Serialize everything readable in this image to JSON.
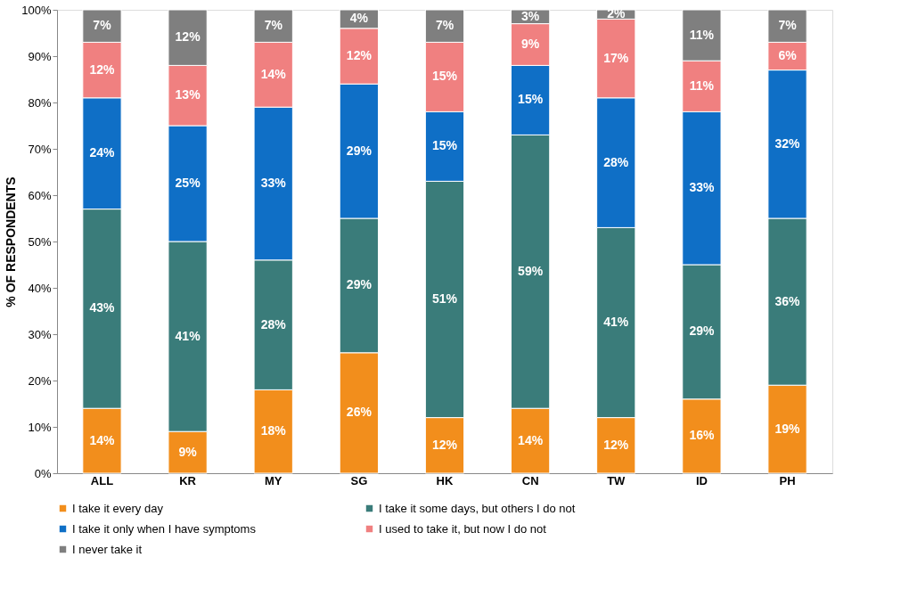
{
  "chart_data": {
    "type": "bar",
    "stacked": true,
    "ylabel": "% OF RESPONDENTS",
    "categories": [
      "ALL",
      "KR",
      "MY",
      "SG",
      "HK",
      "CN",
      "TW",
      "ID",
      "PH"
    ],
    "series": [
      {
        "name": "I take it every day",
        "color": "#f28e1c",
        "values": [
          14,
          9,
          18,
          26,
          12,
          14,
          12,
          16,
          19
        ],
        "value_labels": [
          "14%",
          "9%",
          "18%",
          "26%",
          "12%",
          "14%",
          "12%",
          "16%",
          "19%"
        ]
      },
      {
        "name": "I take it some days, but others I do not",
        "color": "#3a7c7a",
        "values": [
          43,
          41,
          28,
          29,
          51,
          59,
          41,
          29,
          36
        ],
        "value_labels": [
          "43%",
          "41%",
          "28%",
          "29%",
          "51%",
          "59%",
          "41%",
          "29%",
          "36%"
        ]
      },
      {
        "name": "I take it only when I have symptoms",
        "color": "#0f6fc6",
        "values": [
          24,
          25,
          33,
          29,
          15,
          15,
          28,
          33,
          32
        ],
        "value_labels": [
          "24%",
          "25%",
          "33%",
          "29%",
          "15%",
          "15%",
          "28%",
          "33%",
          "32%"
        ]
      },
      {
        "name": "I used to take it, but now I do not",
        "color": "#f08080",
        "values": [
          12,
          13,
          14,
          12,
          15,
          9,
          17,
          11,
          6
        ],
        "value_labels": [
          "12%",
          "13%",
          "14%",
          "12%",
          "15%",
          "9%",
          "17%",
          "11%",
          "6%"
        ]
      },
      {
        "name": "I never take it",
        "color": "#7f7f7f",
        "values": [
          7,
          12,
          7,
          4,
          7,
          3,
          2,
          11,
          7
        ],
        "value_labels": [
          "7%",
          "12%",
          "7%",
          "4%",
          "7%",
          "3%",
          "2%",
          "11%",
          "7%"
        ]
      }
    ],
    "ylim": [
      0,
      100
    ],
    "yticks": [
      {
        "value": 0,
        "label": "0%"
      },
      {
        "value": 10,
        "label": "10%"
      },
      {
        "value": 20,
        "label": "20%"
      },
      {
        "value": 30,
        "label": "30%"
      },
      {
        "value": 40,
        "label": "40%"
      },
      {
        "value": 50,
        "label": "50%"
      },
      {
        "value": 60,
        "label": "60%"
      },
      {
        "value": 70,
        "label": "70%"
      },
      {
        "value": 80,
        "label": "80%"
      },
      {
        "value": 90,
        "label": "90%"
      },
      {
        "value": 100,
        "label": "100%"
      }
    ],
    "grid": false,
    "legend": "bottom"
  }
}
